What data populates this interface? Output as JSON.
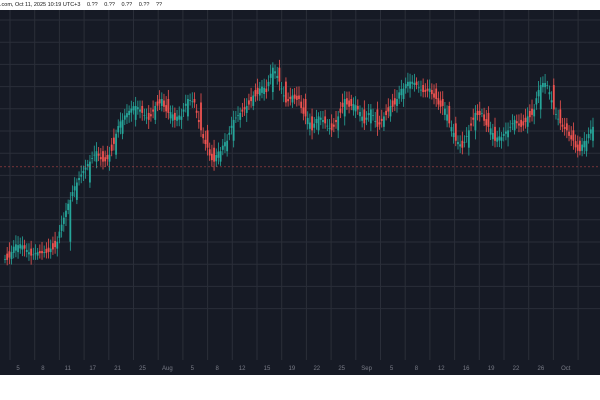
{
  "header": {
    "source": ".com, Oct 11, 2025 10:19 UTC+3",
    "ohlc_stats": [
      "0.??",
      "0.??",
      "0.??",
      "0.??",
      "??"
    ]
  },
  "chart_data": {
    "type": "candlestick",
    "title": "",
    "xlabel": "",
    "ylabel": "",
    "background": "#161a25",
    "grid": true,
    "colors": {
      "up": "#26a69a",
      "down": "#ef5350",
      "grid": "#2a2e39",
      "axis_text": "#787b86",
      "price_line": "#ef5350"
    },
    "x_axis": {
      "range": [
        "Jul 2",
        "Oct 11"
      ],
      "tick_labels": [
        "5",
        "8",
        "11",
        "17",
        "21",
        "25",
        "Aug",
        "5",
        "8",
        "12",
        "15",
        "19",
        "22",
        "25",
        "Sep",
        "5",
        "8",
        "12",
        "16",
        "19",
        "22",
        "26",
        "Oct"
      ]
    },
    "y_axis": {
      "range": [
        0,
        100
      ],
      "tick_labels": [],
      "note": "relative price, labels not visible"
    },
    "series": [
      {
        "name": "",
        "values": [
          [
            1,
            29
          ],
          [
            2,
            31
          ],
          [
            3,
            33
          ],
          [
            4,
            32
          ],
          [
            5,
            30
          ],
          [
            6,
            31
          ],
          [
            7,
            31
          ],
          [
            8,
            32
          ],
          [
            9,
            34
          ],
          [
            11,
            46
          ],
          [
            12,
            51
          ],
          [
            14,
            57
          ],
          [
            15,
            60
          ],
          [
            16,
            57
          ],
          [
            17,
            59
          ],
          [
            18,
            65
          ],
          [
            19,
            69
          ],
          [
            21,
            73
          ],
          [
            22,
            71
          ],
          [
            23,
            69
          ],
          [
            24,
            73
          ],
          [
            25,
            75
          ],
          [
            26,
            71
          ],
          [
            27,
            69
          ],
          [
            28,
            70
          ],
          [
            29,
            75
          ],
          [
            30,
            74
          ],
          [
            31,
            66
          ],
          [
            32,
            61
          ],
          [
            33,
            57
          ],
          [
            34,
            60
          ],
          [
            35,
            63
          ],
          [
            36,
            69
          ],
          [
            37,
            71
          ],
          [
            38,
            73
          ],
          [
            39,
            76
          ],
          [
            40,
            78
          ],
          [
            41,
            77
          ],
          [
            42,
            84
          ],
          [
            43,
            80
          ],
          [
            44,
            74
          ],
          [
            45,
            76
          ],
          [
            46,
            75
          ],
          [
            47,
            70
          ],
          [
            48,
            66
          ],
          [
            49,
            70
          ],
          [
            50,
            68
          ],
          [
            51,
            66
          ],
          [
            52,
            70
          ],
          [
            53,
            75
          ],
          [
            54,
            73
          ],
          [
            55,
            72
          ],
          [
            56,
            68
          ],
          [
            57,
            72
          ],
          [
            58,
            67
          ],
          [
            59,
            70
          ],
          [
            60,
            73
          ],
          [
            61,
            75
          ],
          [
            62,
            78
          ],
          [
            63,
            80
          ],
          [
            64,
            79
          ],
          [
            65,
            77
          ],
          [
            66,
            78
          ],
          [
            67,
            75
          ],
          [
            68,
            73
          ],
          [
            69,
            68
          ],
          [
            70,
            63
          ],
          [
            71,
            61
          ],
          [
            72,
            66
          ],
          [
            73,
            71
          ],
          [
            74,
            71
          ],
          [
            75,
            67
          ],
          [
            76,
            63
          ],
          [
            77,
            64
          ],
          [
            78,
            66
          ],
          [
            79,
            69
          ],
          [
            80,
            67
          ],
          [
            81,
            70
          ],
          [
            82,
            72
          ],
          [
            83,
            79
          ],
          [
            84,
            79
          ],
          [
            85,
            72
          ],
          [
            86,
            68
          ],
          [
            87,
            66
          ],
          [
            88,
            63
          ],
          [
            89,
            60
          ],
          [
            90,
            63
          ],
          [
            91,
            67
          ]
        ]
      }
    ]
  }
}
